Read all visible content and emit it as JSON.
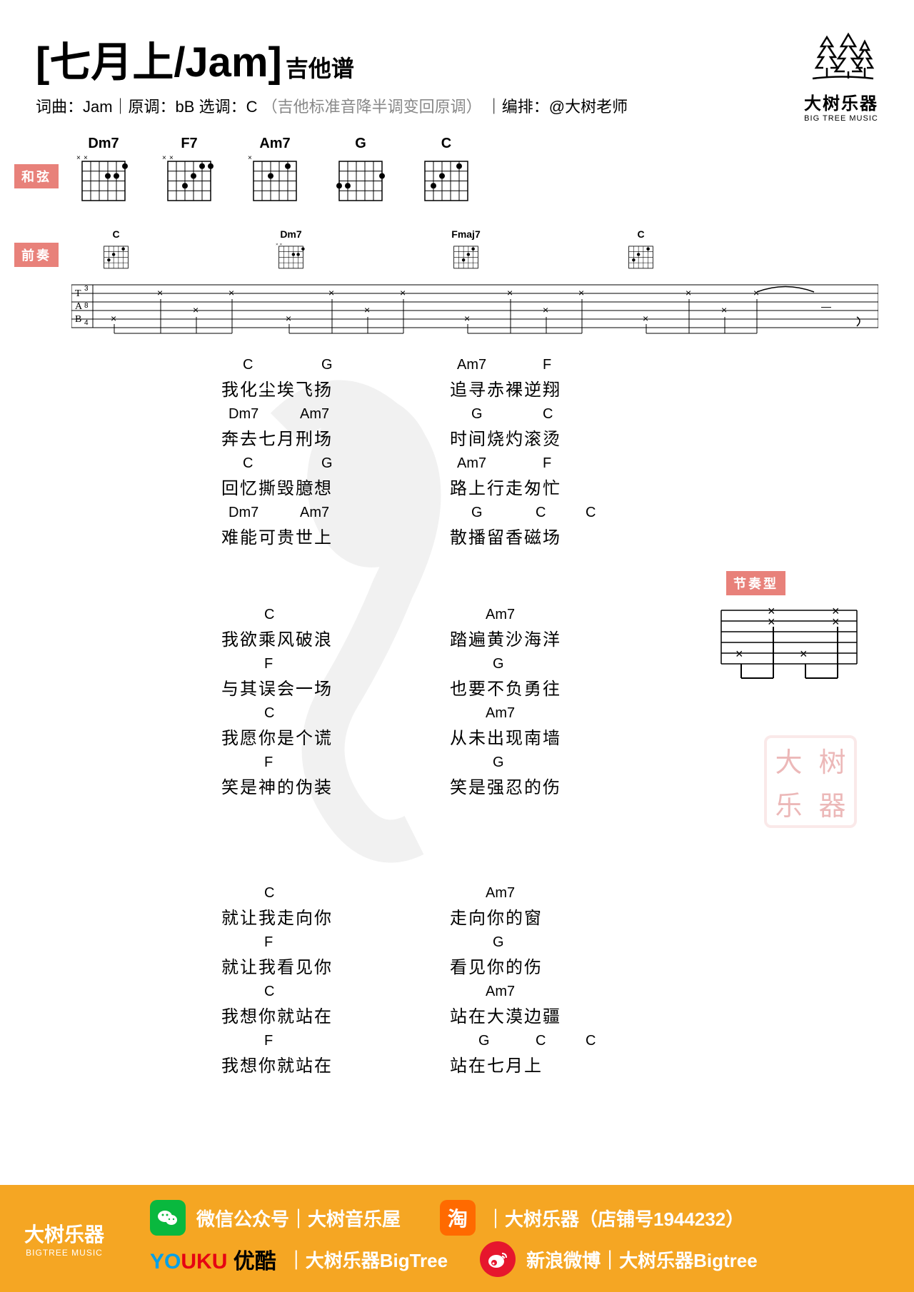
{
  "header": {
    "title": "[七月上/Jam]",
    "tabLabel": "吉他谱",
    "meta_prefix": "词曲：Jam｜原调：bB 选调：C",
    "meta_note": "（吉他标准音降半调变回原调）",
    "meta_suffix": "｜编排：@大树老师"
  },
  "logo": {
    "main": "大树乐器",
    "sub": "BIG TREE MUSIC"
  },
  "tags": {
    "chords": "和弦",
    "intro": "前奏",
    "rhythm": "节奏型"
  },
  "chordDiagrams": [
    "Dm7",
    "F7",
    "Am7",
    "G",
    "C"
  ],
  "introChords": [
    "C",
    "Dm7",
    "Fmaj7",
    "C"
  ],
  "lyrics": {
    "verse1": [
      {
        "l": {
          "chords": [
            [
              "C",
              30
            ],
            [
              "G",
              140
            ]
          ],
          "text": "我化尘埃飞扬"
        },
        "r": {
          "chords": [
            [
              "Am7",
              10
            ],
            [
              "F",
              130
            ]
          ],
          "text": "追寻赤裸逆翔"
        }
      },
      {
        "l": {
          "chords": [
            [
              "Dm7",
              10
            ],
            [
              "Am7",
              110
            ]
          ],
          "text": "奔去七月刑场"
        },
        "r": {
          "chords": [
            [
              "G",
              30
            ],
            [
              "C",
              130
            ]
          ],
          "text": "时间烧灼滚烫"
        }
      },
      {
        "l": {
          "chords": [
            [
              "C",
              30
            ],
            [
              "G",
              140
            ]
          ],
          "text": "回忆撕毁臆想"
        },
        "r": {
          "chords": [
            [
              "Am7",
              10
            ],
            [
              "F",
              130
            ]
          ],
          "text": "路上行走匆忙"
        }
      },
      {
        "l": {
          "chords": [
            [
              "Dm7",
              10
            ],
            [
              "Am7",
              110
            ]
          ],
          "text": "难能可贵世上"
        },
        "r": {
          "chords": [
            [
              "G",
              30
            ],
            [
              "C",
              120
            ],
            [
              "C",
              190
            ]
          ],
          "text": "散播留香磁场"
        }
      }
    ],
    "verse2": [
      {
        "l": {
          "chords": [
            [
              "C",
              60
            ]
          ],
          "text": "我欲乘风破浪"
        },
        "r": {
          "chords": [
            [
              "Am7",
              50
            ]
          ],
          "text": "踏遍黄沙海洋"
        }
      },
      {
        "l": {
          "chords": [
            [
              "F",
              60
            ]
          ],
          "text": "与其误会一场"
        },
        "r": {
          "chords": [
            [
              "G",
              60
            ]
          ],
          "text": "也要不负勇往"
        }
      },
      {
        "l": {
          "chords": [
            [
              "C",
              60
            ]
          ],
          "text": "我愿你是个谎"
        },
        "r": {
          "chords": [
            [
              "Am7",
              50
            ]
          ],
          "text": "从未出现南墙"
        }
      },
      {
        "l": {
          "chords": [
            [
              "F",
              60
            ]
          ],
          "text": "笑是神的伪装"
        },
        "r": {
          "chords": [
            [
              "G",
              60
            ]
          ],
          "text": "笑是强忍的伤"
        }
      }
    ],
    "verse3": [
      {
        "l": {
          "chords": [
            [
              "C",
              60
            ]
          ],
          "text": "就让我走向你"
        },
        "r": {
          "chords": [
            [
              "Am7",
              50
            ]
          ],
          "text": "走向你的窗"
        }
      },
      {
        "l": {
          "chords": [
            [
              "F",
              60
            ]
          ],
          "text": "就让我看见你"
        },
        "r": {
          "chords": [
            [
              "G",
              60
            ]
          ],
          "text": "看见你的伤"
        }
      },
      {
        "l": {
          "chords": [
            [
              "C",
              60
            ]
          ],
          "text": "我想你就站在"
        },
        "r": {
          "chords": [
            [
              "Am7",
              50
            ]
          ],
          "text": "站在大漠边疆"
        }
      },
      {
        "l": {
          "chords": [
            [
              "F",
              60
            ]
          ],
          "text": "我想你就站在"
        },
        "r": {
          "chords": [
            [
              "G",
              40
            ],
            [
              "C",
              120
            ],
            [
              "C",
              190
            ]
          ],
          "text": "站在七月上"
        }
      }
    ]
  },
  "stamp": [
    "大",
    "树",
    "乐",
    "器"
  ],
  "footer": {
    "logo": {
      "main": "大树乐器",
      "sub": "BIGTREE MUSIC"
    },
    "wechat": "微信公众号｜大树音乐屋",
    "taobao": "｜大树乐器（店铺号1944232）",
    "youku_cn": "优酷",
    "youku_text": "｜大树乐器BigTree",
    "weibo": "新浪微博｜大树乐器Bigtree"
  },
  "colors": {
    "tag_bg": "#e8817a",
    "footer_bg": "#f5a623",
    "wechat": "#09b83e",
    "taobao": "#ff6a00",
    "weibo": "#e6162d"
  }
}
